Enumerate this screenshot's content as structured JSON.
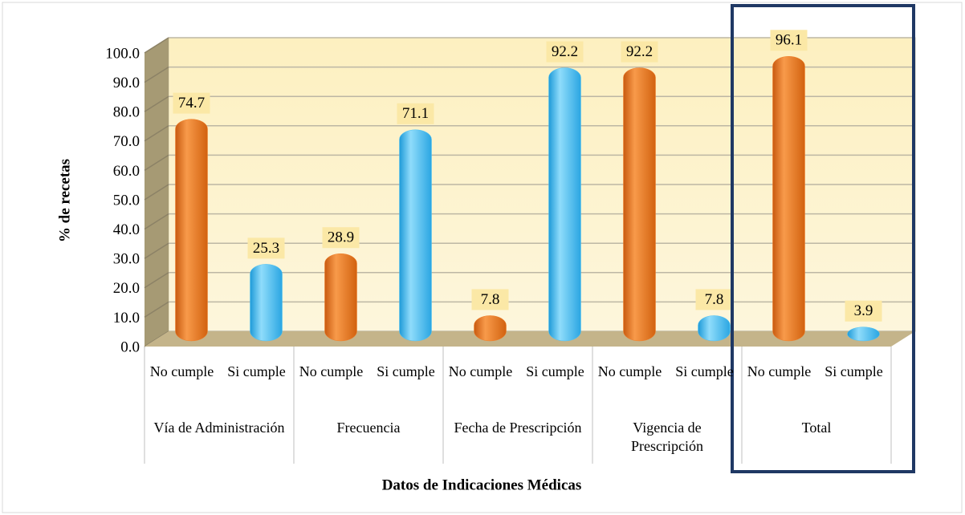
{
  "chart_data": {
    "type": "bar",
    "y_axis_label": "% de recetas",
    "x_axis_label": "Datos de Indicaciones Médicas",
    "groups": [
      "Vía de Administración",
      "Frecuencia",
      "Fecha de Prescripción",
      "Vigencia de Prescripción",
      "Total"
    ],
    "categories": [
      "No cumple",
      "Si cumple",
      "No cumple",
      "Si cumple",
      "No cumple",
      "Si cumple",
      "No cumple",
      "Si cumple",
      "No cumple",
      "Si cumple"
    ],
    "values": [
      74.7,
      25.3,
      28.9,
      71.1,
      7.8,
      92.2,
      92.2,
      7.8,
      96.1,
      3.9
    ],
    "colors": [
      "#f07f2a",
      "#4fc3f5",
      "#f07f2a",
      "#4fc3f5",
      "#f07f2a",
      "#4fc3f5",
      "#f07f2a",
      "#4fc3f5",
      "#f07f2a",
      "#4fc3f5"
    ],
    "ylim": [
      0,
      100
    ],
    "yticks": [
      {
        "value": 0,
        "label": "0.0"
      },
      {
        "value": 10,
        "label": "10.0"
      },
      {
        "value": 20,
        "label": "20.0"
      },
      {
        "value": 30,
        "label": "30.0"
      },
      {
        "value": 40,
        "label": "40.0"
      },
      {
        "value": 50,
        "label": "50.0"
      },
      {
        "value": 60,
        "label": "60.0"
      },
      {
        "value": 70,
        "label": "70.0"
      },
      {
        "value": 80,
        "label": "80.0"
      },
      {
        "value": 90,
        "label": "90.0"
      },
      {
        "value": 100,
        "label": "100.0"
      }
    ],
    "grid": true
  }
}
